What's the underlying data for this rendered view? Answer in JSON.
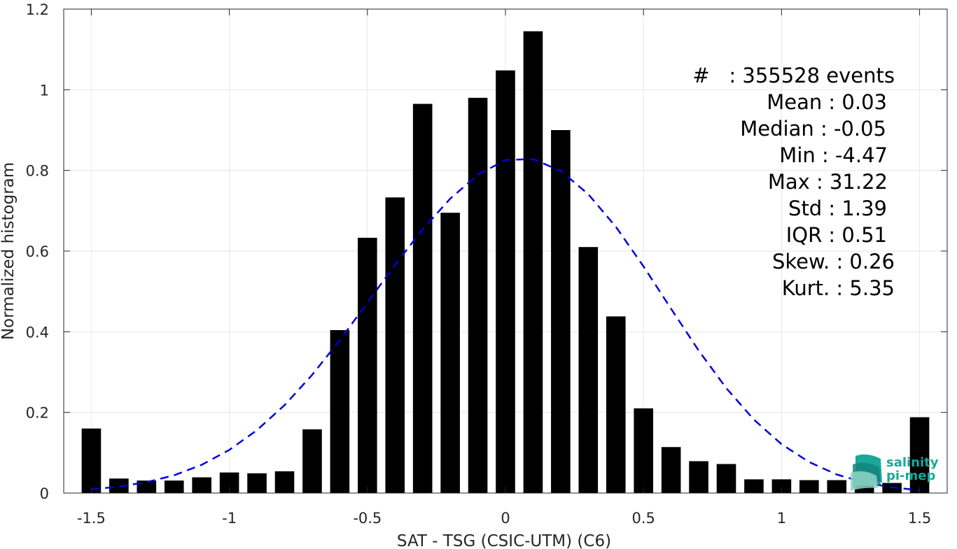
{
  "chart_data": {
    "type": "bar",
    "xlabel": "SAT - TSG (CSIC-UTM) (C6)",
    "ylabel": "Normalized histogram",
    "xlim": [
      -1.6,
      1.6
    ],
    "ylim": [
      0,
      1.2
    ],
    "xticks": [
      "-1.5",
      "-1",
      "-0.5",
      "0",
      "0.5",
      "1",
      "1.5"
    ],
    "yticks": [
      "0",
      "0.2",
      "0.4",
      "0.6",
      "0.8",
      "1",
      "1.2"
    ],
    "grid": true,
    "bar_color": "#000000",
    "bar_width": 0.07,
    "bins": [
      -1.5,
      -1.4,
      -1.3,
      -1.2,
      -1.1,
      -1.0,
      -0.9,
      -0.8,
      -0.7,
      -0.6,
      -0.5,
      -0.4,
      -0.3,
      -0.2,
      -0.1,
      0.0,
      0.1,
      0.2,
      0.3,
      0.4,
      0.5,
      0.6,
      0.7,
      0.8,
      0.9,
      1.0,
      1.1,
      1.2,
      1.3,
      1.4,
      1.5
    ],
    "values": [
      0.16,
      0.036,
      0.031,
      0.031,
      0.039,
      0.051,
      0.049,
      0.054,
      0.158,
      0.404,
      0.633,
      0.733,
      0.965,
      0.695,
      0.98,
      1.048,
      1.145,
      0.9,
      0.61,
      0.438,
      0.21,
      0.114,
      0.079,
      0.072,
      0.034,
      0.034,
      0.032,
      0.032,
      0.02,
      0.025,
      0.188
    ],
    "fit": {
      "type": "gaussian",
      "color": "#0000dd",
      "style": "dashed",
      "x": [
        -1.5,
        -1.4,
        -1.3,
        -1.2,
        -1.1,
        -1.0,
        -0.9,
        -0.8,
        -0.7,
        -0.6,
        -0.5,
        -0.4,
        -0.3,
        -0.2,
        -0.1,
        0.0,
        0.1,
        0.2,
        0.3,
        0.4,
        0.5,
        0.6,
        0.7,
        0.8,
        0.9,
        1.0,
        1.1,
        1.2,
        1.3,
        1.4,
        1.5
      ],
      "y": [
        0.009,
        0.016,
        0.027,
        0.044,
        0.07,
        0.107,
        0.156,
        0.218,
        0.293,
        0.379,
        0.472,
        0.566,
        0.654,
        0.73,
        0.789,
        0.826,
        0.828,
        0.799,
        0.741,
        0.66,
        0.562,
        0.457,
        0.353,
        0.26,
        0.182,
        0.121,
        0.077,
        0.046,
        0.026,
        0.014,
        0.007
      ]
    },
    "annotations": [
      "#   : 355528 events",
      "Mean : 0.03",
      "Median : -0.05",
      "Min : -4.47",
      "Max : 31.22",
      "Std : 1.39",
      "IQR : 0.51",
      "Skew. : 0.26",
      "Kurt. : 5.35"
    ]
  },
  "logo": {
    "line1": "salinity",
    "line2": "pi-mep"
  }
}
